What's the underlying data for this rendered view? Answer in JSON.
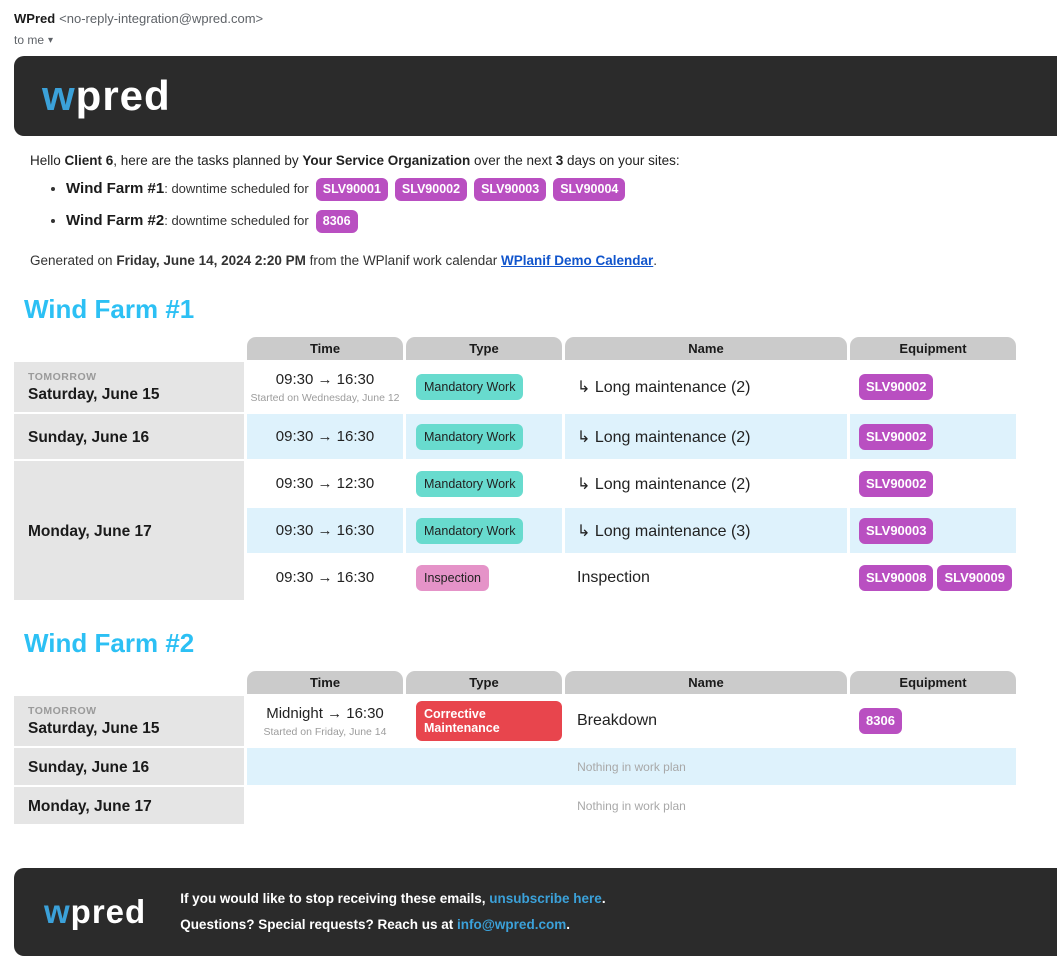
{
  "colors": {
    "brand_dark": "#2b2b2b",
    "brand_blue": "#3ba1d9",
    "heading_cyan": "#2cc0f4",
    "equipment_badge": "#b94fc1",
    "mandatory_work_badge": "#68dbce",
    "inspection_badge": "#e593c8",
    "corrective_maintenance_badge": "#e8454d",
    "row_alt_blue": "#def2fc",
    "day_cell_gray": "#e5e5e5",
    "header_cell_gray": "#cbcbcb",
    "calendar_link_blue": "#1155cc"
  },
  "email_meta": {
    "sender_name": "WPred",
    "sender_address": "<no-reply-integration@wpred.com>",
    "recipient_label": "to me",
    "dropdown_icon": "▾"
  },
  "logo": {
    "first": "w",
    "rest": "pred"
  },
  "intro": {
    "greeting_prefix": "Hello ",
    "client_name": "Client 6",
    "text_after_client": ", here are the tasks planned by ",
    "org_name": "Your Service Organization",
    "text_after_org": " over the next ",
    "days_count": "3",
    "text_after_days": " days on your sites:",
    "bullets": [
      {
        "site": "Wind Farm #1",
        "label": ": downtime scheduled for",
        "badges": [
          "SLV90001",
          "SLV90002",
          "SLV90003",
          "SLV90004"
        ]
      },
      {
        "site": "Wind Farm #2",
        "label": ": downtime scheduled for",
        "badges": [
          "8306"
        ]
      }
    ],
    "generated_prefix": "Generated on ",
    "generated_datetime": "Friday, June 14, 2024 2:20 PM",
    "generated_middle": " from the WPlanif work calendar ",
    "calendar_link_label": "WPlanif Demo Calendar",
    "generated_suffix": "."
  },
  "table_headers": {
    "time": "Time",
    "type": "Type",
    "name": "Name",
    "equipment": "Equipment"
  },
  "farm1": {
    "title": "Wind Farm #1",
    "day_groups": [
      {
        "tag": "TOMORROW",
        "date": "Saturday, June 15"
      },
      {
        "tag": "",
        "date": "Sunday, June 16"
      },
      {
        "tag": "",
        "date": "Monday, June 17"
      }
    ],
    "rows": [
      {
        "time": "09:30 → 16:30",
        "time_note": "Started on Wednesday, June 12",
        "type": "Mandatory Work",
        "name": "↳ Long maintenance (2)",
        "equipment": [
          "SLV90002"
        ]
      },
      {
        "time": "09:30 → 16:30",
        "time_note": "",
        "type": "Mandatory Work",
        "name": "↳ Long maintenance (2)",
        "equipment": [
          "SLV90002"
        ]
      },
      {
        "time": "09:30 → 12:30",
        "time_note": "",
        "type": "Mandatory Work",
        "name": "↳ Long maintenance (2)",
        "equipment": [
          "SLV90002"
        ]
      },
      {
        "time": "09:30 → 16:30",
        "time_note": "",
        "type": "Mandatory Work",
        "name": "↳ Long maintenance (3)",
        "equipment": [
          "SLV90003"
        ]
      },
      {
        "time": "09:30 → 16:30",
        "time_note": "",
        "type": "Inspection",
        "name": "Inspection",
        "equipment": [
          "SLV90008",
          "SLV90009"
        ]
      }
    ]
  },
  "farm2": {
    "title": "Wind Farm #2",
    "day_groups": [
      {
        "tag": "TOMORROW",
        "date": "Saturday, June 15"
      },
      {
        "tag": "",
        "date": "Sunday, June 16"
      },
      {
        "tag": "",
        "date": "Monday, June 17"
      }
    ],
    "rows": [
      {
        "time": "Midnight → 16:30",
        "time_note": "Started on Friday, June 14",
        "type": "Corrective Maintenance",
        "name": "Breakdown",
        "equipment": [
          "8306"
        ]
      }
    ],
    "empty_row_text": "Nothing in work plan"
  },
  "footer": {
    "line1_prefix": "If you would like to stop receiving these emails, ",
    "unsubscribe_label": "unsubscribe here",
    "line1_suffix": ".",
    "line2_prefix": "Questions? Special requests? Reach us at ",
    "email_link_label": "info@wpred.com",
    "line2_suffix": "."
  }
}
